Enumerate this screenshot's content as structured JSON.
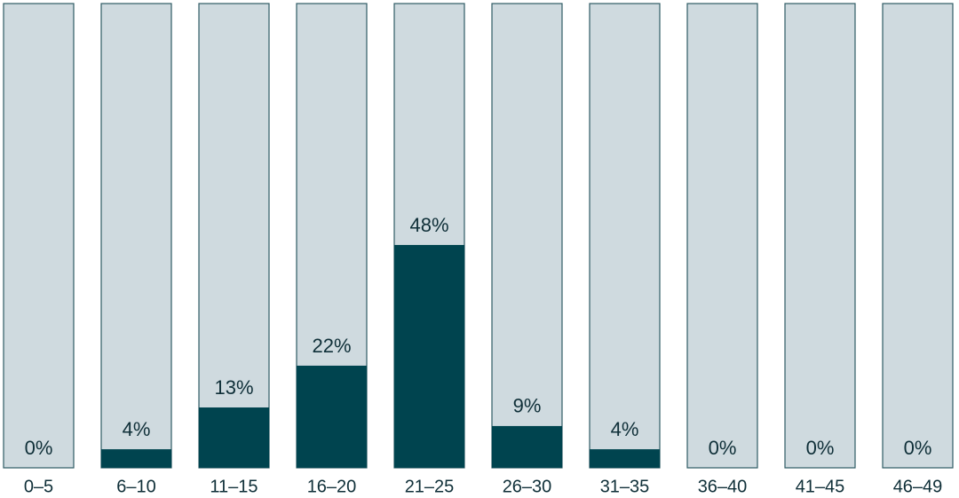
{
  "chart_data": {
    "type": "bar",
    "categories": [
      "0–5",
      "6–10",
      "11–15",
      "16–20",
      "21–25",
      "26–30",
      "31–35",
      "36–40",
      "41–45",
      "46–49"
    ],
    "values": [
      0,
      4,
      13,
      22,
      48,
      9,
      4,
      0,
      0,
      0
    ],
    "value_labels": [
      "0%",
      "4%",
      "13%",
      "22%",
      "48%",
      "9%",
      "4%",
      "0%",
      "0%",
      "0%"
    ],
    "ylim": [
      0,
      100
    ],
    "color": "#00444f",
    "track_color": "#cfdadf"
  }
}
